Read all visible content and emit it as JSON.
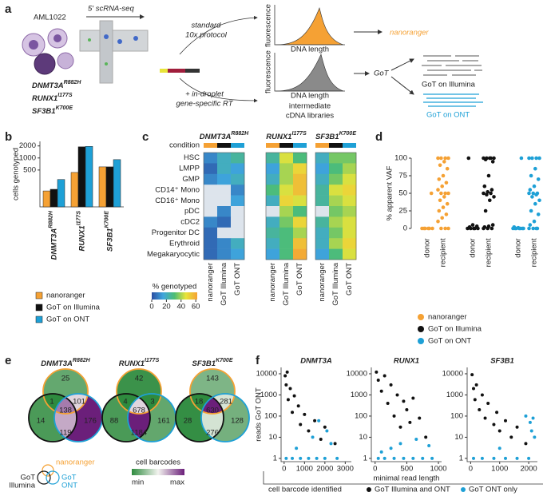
{
  "panel_labels": [
    "a",
    "b",
    "c",
    "d",
    "e",
    "f"
  ],
  "schematic": {
    "sample": "AML1022",
    "protocol": "5′ scRNA-seq",
    "mutations": [
      {
        "gene": "DNMT3A",
        "variant": "R882H"
      },
      {
        "gene": "RUNX1",
        "variant": "I177S"
      },
      {
        "gene": "SF3B1",
        "variant": "K700E"
      }
    ],
    "standard": [
      "standard",
      "10x protocol"
    ],
    "modified": [
      "+ in-droplet",
      "gene-specific RT"
    ],
    "y_axis": "fluorescence",
    "x_axis": "DNA length",
    "libraries": [
      "intermediate",
      "cDNA libraries"
    ],
    "nanoranger": "nanoranger",
    "got": "GoT",
    "got_illumina": "GoT on Illumina",
    "got_ont": "GoT on ONT"
  },
  "chart_data": [
    {
      "type": "bar",
      "ylabel": "cells genotyped",
      "categories": [
        "DNMT3A",
        "RUNX1",
        "SF3B1"
      ],
      "category_superscripts": [
        "R882H",
        "I177S",
        "K700E"
      ],
      "series": [
        {
          "name": "nanoranger",
          "color": "#f5a134",
          "values": [
            150,
            435,
            600
          ]
        },
        {
          "name": "GoT on Illumina",
          "color": "#111111",
          "values": [
            165,
            1900,
            600
          ]
        },
        {
          "name": "GoT on ONT",
          "color": "#1ea0d6",
          "values": [
            290,
            1950,
            910
          ]
        }
      ],
      "log_scale": true,
      "ylim": [
        60,
        2600
      ],
      "yticks": [
        500,
        1000,
        2000
      ]
    },
    {
      "type": "heatmap",
      "condition_label": "condition",
      "condition_colors": [
        "#f5a134",
        "#111111",
        "#1ea0d6"
      ],
      "rows": [
        "HSC",
        "LMPP",
        "GMP",
        "CD14⁺ Mono",
        "CD16⁺ Mono",
        "pDC",
        "cDC2",
        "Progenitor DC",
        "Erythroid",
        "Megakaryocytic"
      ],
      "columns": [
        "nanoranger",
        "GoT Illumina",
        "GoT ONT"
      ],
      "blocks": [
        {
          "title": "DNMT3A",
          "superscript": "R882H",
          "values": [
            [
              10,
              20,
              25
            ],
            [
              5,
              20,
              15
            ],
            [
              10,
              15,
              20
            ],
            [
              null,
              null,
              10
            ],
            [
              null,
              null,
              15
            ],
            [
              null,
              10,
              null
            ],
            [
              10,
              5,
              null
            ],
            [
              5,
              null,
              null
            ],
            [
              5,
              10,
              20
            ],
            [
              5,
              10,
              15
            ]
          ]
        },
        {
          "title": "RUNX1",
          "superscript": "I177S",
          "values": [
            [
              25,
              45,
              30
            ],
            [
              15,
              40,
              50
            ],
            [
              20,
              40,
              55
            ],
            [
              30,
              45,
              55
            ],
            [
              20,
              50,
              45
            ],
            [
              null,
              40,
              30
            ],
            [
              20,
              35,
              50
            ],
            [
              25,
              30,
              40
            ],
            [
              20,
              30,
              55
            ],
            [
              15,
              30,
              60
            ]
          ]
        },
        {
          "title": "SF3B1",
          "superscript": "K700E",
          "values": [
            [
              20,
              35,
              35
            ],
            [
              15,
              30,
              40
            ],
            [
              20,
              35,
              45
            ],
            [
              25,
              45,
              50
            ],
            [
              25,
              40,
              45
            ],
            [
              null,
              35,
              40
            ],
            [
              25,
              40,
              45
            ],
            [
              20,
              35,
              45
            ],
            [
              20,
              40,
              50
            ],
            [
              15,
              30,
              45
            ]
          ]
        }
      ],
      "colorbar_label": "% genotyped",
      "clim": [
        0,
        62
      ],
      "cticks": [
        0,
        20,
        40,
        60
      ],
      "colormap": [
        "#2b4ea2",
        "#3fa6dd",
        "#4dbd74",
        "#e8e43a",
        "#f5a134"
      ],
      "missing_color": "#dde4ec"
    },
    {
      "type": "strip",
      "ylabel": "% apparent VAF",
      "categories": [
        "donor",
        "recipient"
      ],
      "ylim": [
        -5,
        105
      ],
      "yticks": [
        0,
        25,
        50,
        75,
        100
      ],
      "series": [
        {
          "name": "nanoranger",
          "color": "#f5a134",
          "values": [
            [
              0,
              0,
              0,
              0,
              0,
              0,
              50
            ],
            [
              100,
              100,
              100,
              100,
              95,
              90,
              85,
              75,
              70,
              65,
              60,
              55,
              50,
              50,
              50,
              45,
              40,
              35,
              30,
              25,
              20,
              15,
              10,
              0,
              0,
              0
            ]
          ]
        },
        {
          "name": "GoT on Illumina",
          "color": "#111111",
          "values": [
            [
              0,
              0,
              0,
              0,
              0,
              2,
              3,
              5,
              100
            ],
            [
              100,
              100,
              100,
              100,
              100,
              98,
              95,
              75,
              60,
              55,
              52,
              50,
              50,
              48,
              45,
              40,
              25,
              5,
              3,
              2,
              0,
              0,
              0
            ]
          ]
        },
        {
          "name": "GoT on ONT",
          "color": "#1ea0d6",
          "values": [
            [
              0,
              0,
              0,
              0,
              0,
              0,
              0,
              1,
              2,
              100
            ],
            [
              100,
              100,
              100,
              100,
              85,
              75,
              70,
              60,
              55,
              50,
              50,
              50,
              48,
              45,
              40,
              35,
              25,
              20,
              10,
              5,
              0,
              0,
              0,
              0
            ]
          ]
        }
      ]
    },
    {
      "type": "scatter",
      "title": "DNMT3A",
      "ylabel": "reads GoT ONT",
      "legend_title": "cell barcode identified",
      "log_y": true,
      "xlim": [
        -150,
        3300
      ],
      "xticks": [
        0,
        1000,
        2000,
        3000
      ],
      "ylim": [
        0.7,
        20000
      ],
      "yticks": [
        1,
        10,
        100,
        1000,
        10000
      ],
      "series": [
        {
          "name": "GoT Illumina and ONT",
          "color": "#111111",
          "x": [
            50,
            100,
            150,
            200,
            300,
            400,
            500,
            700,
            800,
            1000,
            1200,
            1500,
            1800,
            2000,
            2500
          ],
          "values": [
            8000,
            3000,
            12000,
            600,
            2000,
            150,
            900,
            300,
            40,
            120,
            20,
            60,
            8,
            30,
            5
          ]
        },
        {
          "name": "GoT ONT only",
          "color": "#1ea0d6",
          "x": [
            100,
            400,
            800,
            1200,
            1600,
            2000,
            2600,
            1700,
            2100,
            2300,
            600,
            1400
          ],
          "values": [
            1,
            1,
            1,
            1,
            1,
            1,
            1,
            60,
            20,
            5,
            3,
            10
          ]
        }
      ]
    },
    {
      "type": "scatter",
      "title": "RUNX1",
      "xlabel": "minimal read length",
      "log_y": true,
      "xlim": [
        -60,
        1050
      ],
      "xticks": [
        0,
        500,
        1000
      ],
      "ylim": [
        0.7,
        20000
      ],
      "yticks": [
        1,
        10,
        100,
        1000,
        10000
      ],
      "series": [
        {
          "name": "GoT Illumina and ONT",
          "color": "#111111",
          "x": [
            20,
            50,
            100,
            150,
            200,
            250,
            300,
            350,
            400,
            450,
            500,
            550,
            600,
            700,
            800
          ],
          "values": [
            12000,
            5000,
            1500,
            8000,
            400,
            3000,
            100,
            1000,
            30,
            500,
            200,
            50,
            700,
            80,
            10
          ]
        },
        {
          "name": "GoT ONT only",
          "color": "#1ea0d6",
          "x": [
            50,
            150,
            300,
            450,
            600,
            750,
            900,
            100,
            250,
            400,
            650,
            850
          ],
          "values": [
            1,
            1,
            1,
            1,
            1,
            1,
            1,
            2,
            3,
            5,
            8,
            4
          ]
        }
      ]
    },
    {
      "type": "scatter",
      "title": "SF3B1",
      "log_y": true,
      "xlim": [
        -120,
        2300
      ],
      "xticks": [
        0,
        1000,
        2000
      ],
      "ylim": [
        0.7,
        20000
      ],
      "yticks": [
        1,
        10,
        100,
        1000,
        10000
      ],
      "series": [
        {
          "name": "GoT Illumina and ONT",
          "color": "#111111",
          "x": [
            50,
            100,
            150,
            200,
            300,
            400,
            500,
            600,
            800,
            900,
            1000,
            1200,
            1400,
            1600,
            1900
          ],
          "values": [
            9000,
            2000,
            600,
            3000,
            200,
            1000,
            80,
            400,
            40,
            150,
            20,
            60,
            10,
            30,
            5
          ]
        },
        {
          "name": "GoT ONT only",
          "color": "#1ea0d6",
          "x": [
            100,
            400,
            800,
            1200,
            1600,
            2000,
            2050,
            2100,
            2150,
            2200,
            1900,
            1000
          ],
          "values": [
            1,
            1,
            1,
            1,
            1,
            1,
            50,
            20,
            80,
            10,
            100,
            3
          ]
        }
      ]
    }
  ],
  "venn": {
    "set_colors": {
      "nanoranger": "#f5a134",
      "illumina": "#111111",
      "ont": "#1ea0d6"
    },
    "key": {
      "nanoranger": "nanoranger",
      "illumina": [
        "GoT",
        "Illumina"
      ],
      "ont": [
        "GoT",
        "ONT"
      ]
    },
    "colorbar_label": "cell barcodes",
    "colorbar_ends": [
      "min",
      "max"
    ],
    "colormap": [
      "#2e8b3e",
      "#f3f3ef",
      "#6b1f7a"
    ],
    "diagrams": [
      {
        "gene": "DNMT3A",
        "variant": "R882H",
        "regions": {
          "only_nanoranger": 25,
          "only_illumina": 14,
          "only_ont": 176,
          "nanoranger_illumina": 1,
          "nanoranger_ont": 101,
          "illumina_ont": 119,
          "all": 138
        }
      },
      {
        "gene": "RUNX1",
        "variant": "I177S",
        "regions": {
          "only_nanoranger": 42,
          "only_illumina": 88,
          "only_ont": 161,
          "nanoranger_illumina": 4,
          "nanoranger_ont": 3,
          "illumina_ont": 1184,
          "all": 678
        }
      },
      {
        "gene": "SF3B1",
        "variant": "K700E",
        "regions": {
          "only_nanoranger": 143,
          "only_illumina": 28,
          "only_ont": 128,
          "nanoranger_illumina": 18,
          "nanoranger_ont": 281,
          "illumina_ont": 276,
          "all": 630
        }
      }
    ]
  }
}
